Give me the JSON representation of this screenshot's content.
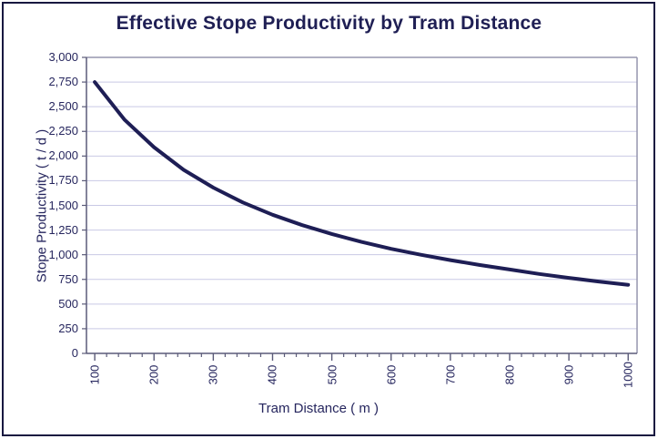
{
  "window": {
    "background_color": "#FFFFFF",
    "frame_border_color": "#181840"
  },
  "chart_data": {
    "type": "line",
    "title": "Effective Stope Productivity by Tram Distance",
    "xlabel": "Tram Distance ( m )",
    "ylabel": "Stope Productivity ( t / d )",
    "x": [
      100,
      150,
      200,
      250,
      300,
      350,
      400,
      450,
      500,
      550,
      600,
      650,
      700,
      750,
      800,
      850,
      900,
      950,
      1000
    ],
    "series": [
      {
        "name": "Effective Stope Productivity",
        "values": [
          2750,
          2370,
          2090,
          1860,
          1680,
          1530,
          1405,
          1300,
          1210,
          1130,
          1060,
          1000,
          945,
          895,
          850,
          805,
          765,
          728,
          695
        ]
      }
    ],
    "xlim": [
      86,
      1015
    ],
    "ylim": [
      0,
      3000
    ],
    "x_major_ticks": [
      100,
      200,
      300,
      400,
      500,
      600,
      700,
      800,
      900,
      1000
    ],
    "x_tick_labels": [
      "100",
      "200",
      "300",
      "400",
      "500",
      "600",
      "700",
      "800",
      "900",
      "1000"
    ],
    "x_minor_tick_step": 20,
    "y_major_ticks": [
      0,
      250,
      500,
      750,
      1000,
      1250,
      1500,
      1750,
      2000,
      2250,
      2500,
      2750,
      3000
    ],
    "y_tick_labels": [
      "0",
      "250",
      "500",
      "750",
      "1,000",
      "1,250",
      "1,500",
      "1,750",
      "2,000",
      "2,250",
      "2,500",
      "2,750",
      "3,000"
    ],
    "grid": "horizontal-major",
    "legend": "none",
    "colors": {
      "line": "#1E1E55",
      "gridline": "#C9C9E5",
      "axis": "#5A5A78",
      "plot_border": "#9595AE",
      "tick": "#5A5A78",
      "label_text": "#26265E",
      "title_text": "#1F1F54"
    }
  }
}
